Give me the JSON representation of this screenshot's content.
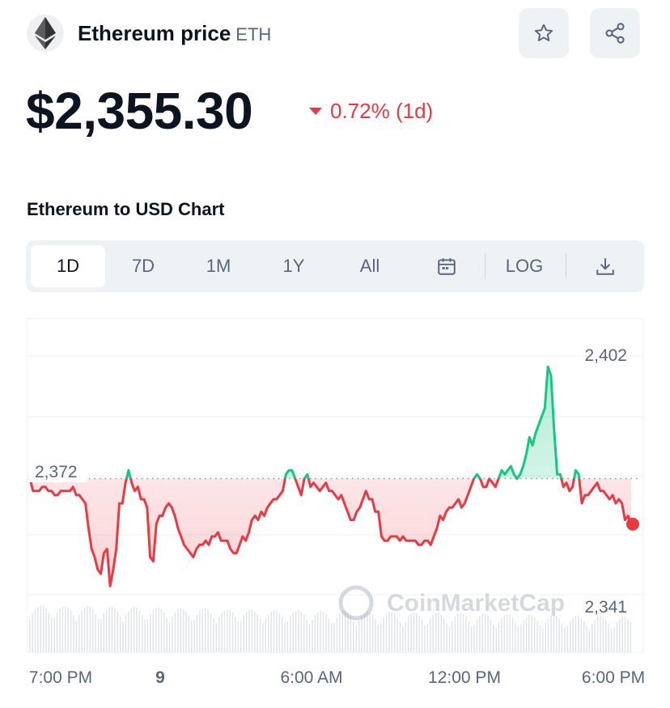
{
  "header": {
    "title": "Ethereum price",
    "symbol": "ETH",
    "logo_icon": "ethereum-icon",
    "star_icon": "star-icon",
    "share_icon": "share-icon"
  },
  "price": {
    "value": "$2,355.30",
    "change": "0.72% (1d)",
    "direction": "down",
    "color_down": "#ea3943",
    "color_up": "#16c784"
  },
  "chart_heading": "Ethereum to USD Chart",
  "range_tabs": [
    {
      "label": "1D",
      "active": true
    },
    {
      "label": "7D",
      "active": false
    },
    {
      "label": "1M",
      "active": false
    },
    {
      "label": "1Y",
      "active": false
    },
    {
      "label": "All",
      "active": false
    }
  ],
  "toolbar": {
    "calendar_icon": "calendar-icon",
    "log_label": "LOG",
    "download_icon": "download-icon"
  },
  "watermark": "CoinMarketCap",
  "chart_data": {
    "type": "line",
    "reference_value": 2372,
    "reference_label": "2,372",
    "max_label": "2,402",
    "min_label": "2,341",
    "ylim": [
      2341,
      2402
    ],
    "x_ticks": [
      "7:00 PM",
      "9",
      "6:00 AM",
      "12:00 PM",
      "6:00 PM"
    ],
    "series": [
      {
        "values": [
          2372,
          2369,
          2369,
          2369,
          2370,
          2370,
          2369,
          2369,
          2368,
          2368,
          2369,
          2369,
          2369,
          2369,
          2370,
          2368,
          2368,
          2367,
          2366,
          2360,
          2355,
          2353,
          2350,
          2349,
          2354,
          2355,
          2346,
          2350,
          2355,
          2366,
          2366,
          2371,
          2374,
          2371,
          2369,
          2370,
          2367,
          2367,
          2365,
          2353,
          2352,
          2361,
          2363,
          2363,
          2365,
          2366,
          2365,
          2363,
          2360,
          2358,
          2356,
          2355,
          2354,
          2353,
          2355,
          2356,
          2356,
          2357,
          2356,
          2358,
          2358,
          2359,
          2357,
          2357,
          2357,
          2355,
          2354,
          2354,
          2356,
          2358,
          2357,
          2359,
          2362,
          2363,
          2362,
          2364,
          2363,
          2365,
          2366,
          2367,
          2367,
          2368,
          2369,
          2373,
          2374,
          2374,
          2372,
          2370,
          2368,
          2372,
          2373,
          2370,
          2371,
          2370,
          2369,
          2370,
          2371,
          2369,
          2369,
          2368,
          2367,
          2368,
          2366,
          2364,
          2362,
          2362,
          2364,
          2365,
          2367,
          2369,
          2367,
          2367,
          2364,
          2364,
          2358,
          2357,
          2357,
          2358,
          2358,
          2358,
          2357,
          2358,
          2357,
          2357,
          2357,
          2357,
          2356,
          2356,
          2357,
          2357,
          2356,
          2358,
          2360,
          2363,
          2362,
          2364,
          2365,
          2365,
          2366,
          2367,
          2365,
          2366,
          2368,
          2370,
          2372,
          2373,
          2372,
          2370,
          2370,
          2372,
          2371,
          2370,
          2372,
          2374,
          2373,
          2374,
          2375,
          2373,
          2372,
          2373,
          2375,
          2378,
          2382,
          2380,
          2383,
          2385,
          2387,
          2389,
          2399,
          2397,
          2384,
          2373,
          2373,
          2370,
          2371,
          2369,
          2370,
          2374,
          2373,
          2366,
          2368,
          2368,
          2369,
          2370,
          2371,
          2369,
          2369,
          2368,
          2367,
          2368,
          2366,
          2367,
          2366,
          2362,
          2363,
          2361
        ]
      }
    ]
  }
}
